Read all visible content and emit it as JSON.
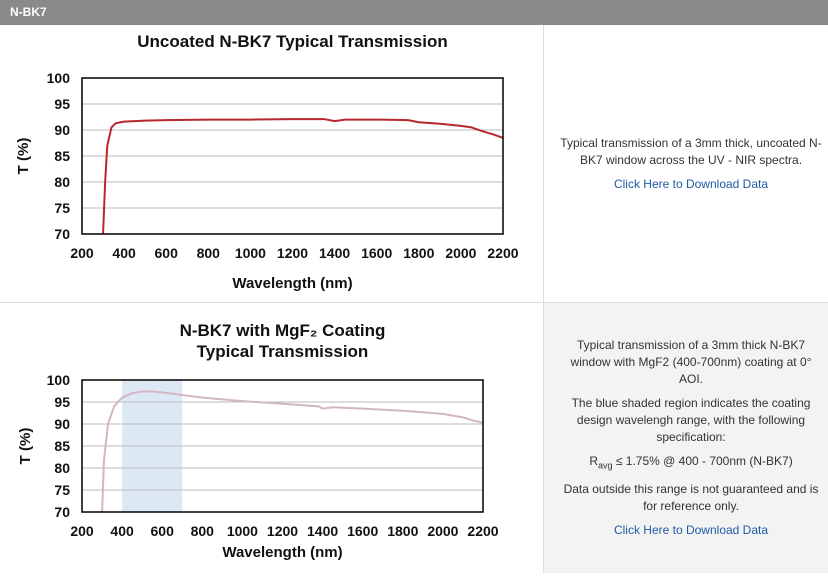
{
  "header": {
    "title": "N-BK7"
  },
  "chart_data": [
    {
      "type": "line",
      "title": [
        "Uncoated N-BK7 Typical Transmission"
      ],
      "xlabel": "Wavelength (nm)",
      "ylabel": "T (%)",
      "x": [
        300,
        310,
        320,
        340,
        360,
        400,
        500,
        600,
        800,
        1000,
        1200,
        1350,
        1400,
        1450,
        1600,
        1750,
        1800,
        1900,
        2000,
        2050,
        2100,
        2150,
        2200
      ],
      "series": [
        {
          "color": "#b8272c",
          "values": [
            70,
            80,
            87,
            90.5,
            91.3,
            91.6,
            91.8,
            91.9,
            92,
            92,
            92.1,
            92.1,
            91.7,
            92,
            92,
            91.9,
            91.5,
            91.2,
            90.8,
            90.5,
            89.8,
            89.2,
            88.5
          ]
        }
      ],
      "xlim": [
        200,
        2200
      ],
      "ylim": [
        70,
        100
      ],
      "xticks": [
        200,
        400,
        600,
        800,
        1000,
        1200,
        1400,
        1600,
        1800,
        2000,
        2200
      ],
      "yticks": [
        70,
        75,
        80,
        85,
        90,
        95,
        100
      ],
      "grid": true
    },
    {
      "type": "line",
      "title": [
        "N-BK7 with MgF₂ Coating",
        "Typical Transmission"
      ],
      "xlabel": "Wavelength (nm)",
      "ylabel": "T (%)",
      "shaded_region": {
        "x": [
          400,
          700
        ],
        "color": "#dce9f5"
      },
      "x": [
        300,
        310,
        330,
        360,
        400,
        450,
        500,
        550,
        600,
        700,
        800,
        1000,
        1200,
        1380,
        1400,
        1450,
        1600,
        1800,
        2000,
        2100,
        2150,
        2200
      ],
      "series": [
        {
          "color": "#d3b6c3",
          "values": [
            70,
            82,
            90,
            94,
            96,
            97,
            97.4,
            97.4,
            97.2,
            96.6,
            96,
            95.2,
            94.6,
            94,
            93.5,
            93.8,
            93.5,
            93,
            92.3,
            91.5,
            90.8,
            90.3
          ]
        }
      ],
      "xlim": [
        200,
        2200
      ],
      "ylim": [
        70,
        100
      ],
      "xticks": [
        200,
        400,
        600,
        800,
        1000,
        1200,
        1400,
        1600,
        1800,
        2000,
        2200
      ],
      "yticks": [
        70,
        75,
        80,
        85,
        90,
        95,
        100
      ],
      "grid": true
    }
  ],
  "descriptions": [
    {
      "paragraphs": [
        "Typical transmission of a 3mm thick, uncoated N-BK7 window across the UV - NIR spectra."
      ],
      "link": "Click Here to Download Data"
    },
    {
      "paragraphs": [
        "Typical transmission of a 3mm thick N-BK7 window with MgF2 (400-700nm) coating at 0° AOI.",
        "The blue shaded region indicates the coating design wavelengh range, with the following specification:"
      ],
      "spec": {
        "symbol": "R",
        "subscript": "avg",
        "text": "≤ 1.75% @ 400 - 700nm (N-BK7)"
      },
      "note": "Data outside this range is not guaranteed and is for reference only.",
      "link": "Click Here to Download Data"
    }
  ]
}
